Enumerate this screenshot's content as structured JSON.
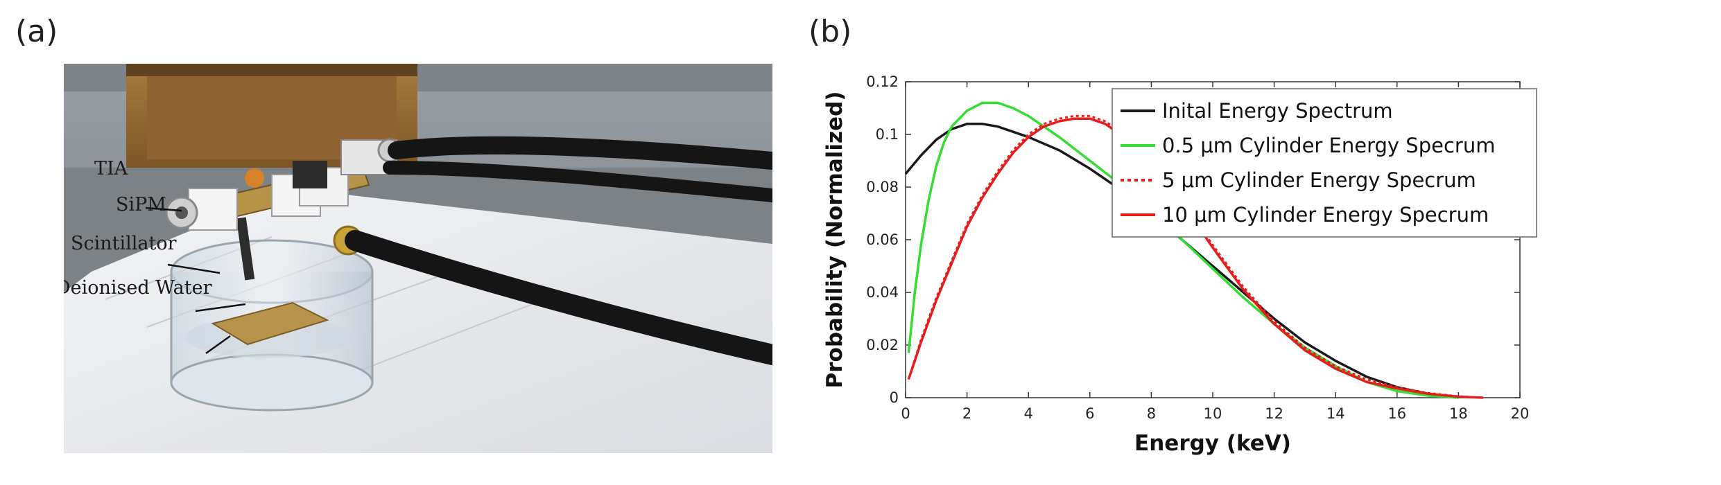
{
  "panels": {
    "a_label": "(a)",
    "b_label": "(b)"
  },
  "photo": {
    "labels": [
      "TIA",
      "SiPM",
      "Scintillator",
      "Deionised Water"
    ]
  },
  "colors": {
    "initial": "#1a1a1a",
    "half_um": "#33dd33",
    "five_um": "#e51d1d",
    "ten_um": "#e51d1d"
  },
  "chart_data": {
    "type": "line",
    "xlabel": "Energy (keV)",
    "ylabel": "Probability (Normalized)",
    "xlim": [
      0,
      20
    ],
    "ylim": [
      0,
      0.12
    ],
    "xticks": [
      0,
      2,
      4,
      6,
      8,
      10,
      12,
      14,
      16,
      18,
      20
    ],
    "yticks": [
      0,
      0.02,
      0.04,
      0.06,
      0.08,
      0.1,
      0.12
    ],
    "legend_position": "top-right",
    "grid": false,
    "series": [
      {
        "name": "Inital Energy Spectrum",
        "color": "#1a1a1a",
        "style": "solid",
        "x": [
          0,
          0.5,
          1,
          1.5,
          2,
          2.5,
          3,
          3.5,
          4,
          5,
          6,
          7,
          8,
          9,
          10,
          11,
          12,
          13,
          14,
          15,
          16,
          17,
          18
        ],
        "y": [
          0.085,
          0.092,
          0.098,
          0.102,
          0.104,
          0.104,
          0.103,
          0.101,
          0.099,
          0.094,
          0.087,
          0.079,
          0.07,
          0.06,
          0.05,
          0.04,
          0.03,
          0.021,
          0.014,
          0.008,
          0.004,
          0.0015,
          0
        ]
      },
      {
        "name": "0.5 μm Cylinder Energy Specrum",
        "color": "#33dd33",
        "style": "solid",
        "x": [
          0.1,
          0.3,
          0.5,
          0.75,
          1,
          1.25,
          1.5,
          2,
          2.5,
          3,
          3.5,
          4,
          5,
          6,
          7,
          8,
          9,
          10,
          11,
          12,
          13,
          14,
          15,
          16,
          17,
          18
        ],
        "y": [
          0.017,
          0.04,
          0.058,
          0.075,
          0.088,
          0.097,
          0.103,
          0.109,
          0.112,
          0.112,
          0.11,
          0.107,
          0.099,
          0.09,
          0.081,
          0.071,
          0.06,
          0.049,
          0.038,
          0.028,
          0.019,
          0.012,
          0.006,
          0.0025,
          0.0008,
          0
        ]
      },
      {
        "name": "5 μm Cylinder Energy Specrum",
        "color": "#e51d1d",
        "style": "dotted",
        "x": [
          0.1,
          0.5,
          1,
          1.5,
          2,
          2.5,
          3,
          3.5,
          4,
          4.5,
          5,
          5.5,
          6,
          6.5,
          7,
          8,
          9,
          10,
          11,
          12,
          13,
          14,
          15,
          16,
          17,
          18,
          18.8
        ],
        "y": [
          0.007,
          0.022,
          0.038,
          0.052,
          0.066,
          0.077,
          0.086,
          0.094,
          0.1,
          0.104,
          0.106,
          0.107,
          0.107,
          0.105,
          0.101,
          0.09,
          0.075,
          0.058,
          0.042,
          0.029,
          0.019,
          0.012,
          0.007,
          0.004,
          0.0018,
          0.0005,
          0
        ]
      },
      {
        "name": "10 μm Cylinder Energy Specrum",
        "color": "#e51d1d",
        "style": "solid",
        "x": [
          0.1,
          0.5,
          1,
          1.5,
          2,
          2.5,
          3,
          3.5,
          4,
          4.5,
          5,
          5.5,
          6,
          6.5,
          7,
          8,
          9,
          10,
          11,
          12,
          13,
          14,
          15,
          16,
          17,
          18,
          18.8
        ],
        "y": [
          0.007,
          0.021,
          0.037,
          0.051,
          0.065,
          0.076,
          0.085,
          0.093,
          0.099,
          0.103,
          0.105,
          0.106,
          0.106,
          0.104,
          0.1,
          0.089,
          0.074,
          0.057,
          0.041,
          0.028,
          0.018,
          0.011,
          0.006,
          0.0035,
          0.0015,
          0.0004,
          0
        ]
      }
    ]
  }
}
